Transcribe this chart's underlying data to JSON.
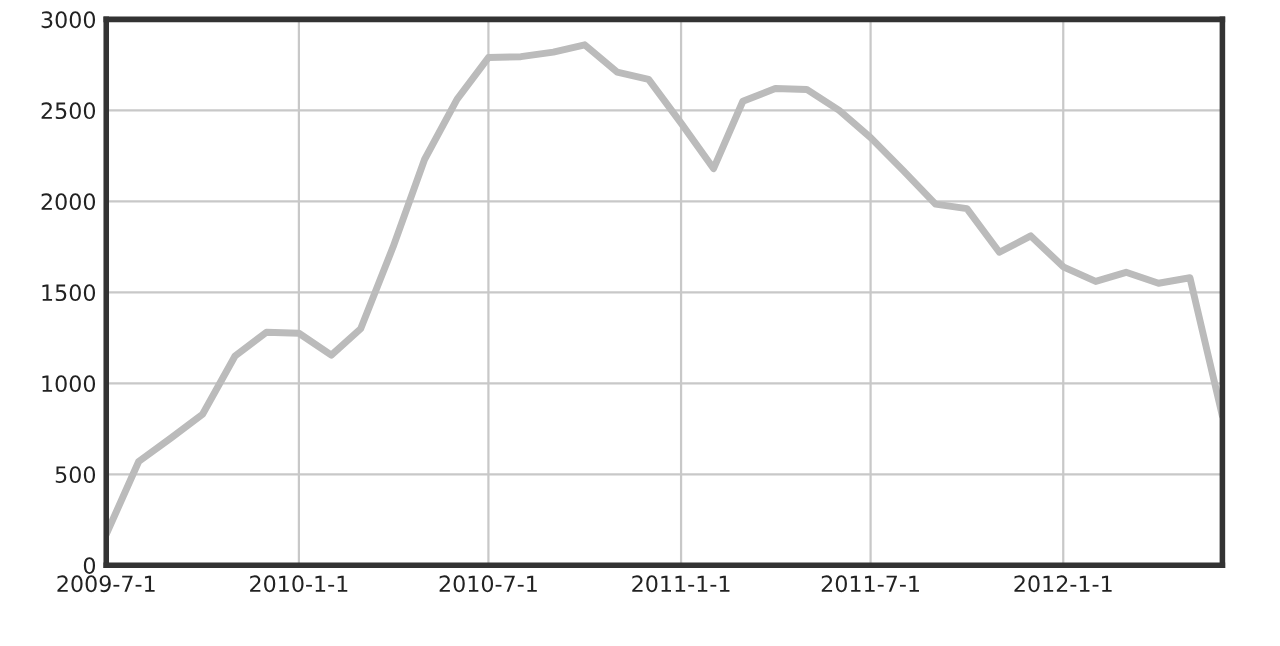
{
  "chart_data": {
    "type": "line",
    "x": [
      "2009-07",
      "2009-08",
      "2009-09",
      "2009-10",
      "2009-11",
      "2009-12",
      "2010-01",
      "2010-02",
      "2010-03",
      "2010-04",
      "2010-05",
      "2010-06",
      "2010-07",
      "2010-08",
      "2010-09",
      "2010-10",
      "2010-11",
      "2010-12",
      "2011-01",
      "2011-02",
      "2011-03",
      "2011-04",
      "2011-05",
      "2011-06",
      "2011-07",
      "2011-08",
      "2011-09",
      "2011-10",
      "2011-11",
      "2011-12",
      "2012-01",
      "2012-02",
      "2012-03",
      "2012-04",
      "2012-05",
      "2012-06"
    ],
    "series": [
      {
        "color": "#bbbbbb",
        "values": [
          170,
          570,
          700,
          830,
          1150,
          1280,
          1275,
          1155,
          1300,
          1750,
          2230,
          2560,
          2790,
          2795,
          2820,
          2860,
          2710,
          2670,
          2430,
          2180,
          2550,
          2620,
          2615,
          2500,
          2350,
          2170,
          1985,
          1960,
          1720,
          1810,
          1640,
          1560,
          1610,
          1550,
          1580,
          820
        ]
      }
    ],
    "xlim": [
      "2009-07",
      "2012-06"
    ],
    "xticks": [
      {
        "value": "2009-07",
        "label": "2009-7-1"
      },
      {
        "value": "2010-01",
        "label": "2010-1-1"
      },
      {
        "value": "2010-07",
        "label": "2010-7-1"
      },
      {
        "value": "2011-01",
        "label": "2011-1-1"
      },
      {
        "value": "2011-07",
        "label": "2011-7-1"
      },
      {
        "value": "2012-01",
        "label": "2012-1-1"
      }
    ],
    "ylim": [
      0,
      3000
    ],
    "yticks": [
      0,
      500,
      1000,
      1500,
      2000,
      2500,
      3000
    ],
    "grid": true,
    "marker": "none",
    "line_style": "solid"
  }
}
